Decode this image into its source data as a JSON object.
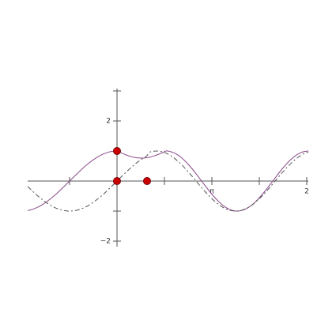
{
  "axis_labels": {
    "y_top": "2",
    "y_bottom": "−2",
    "x_pi": "π",
    "x_two_pi": "2"
  }
}
